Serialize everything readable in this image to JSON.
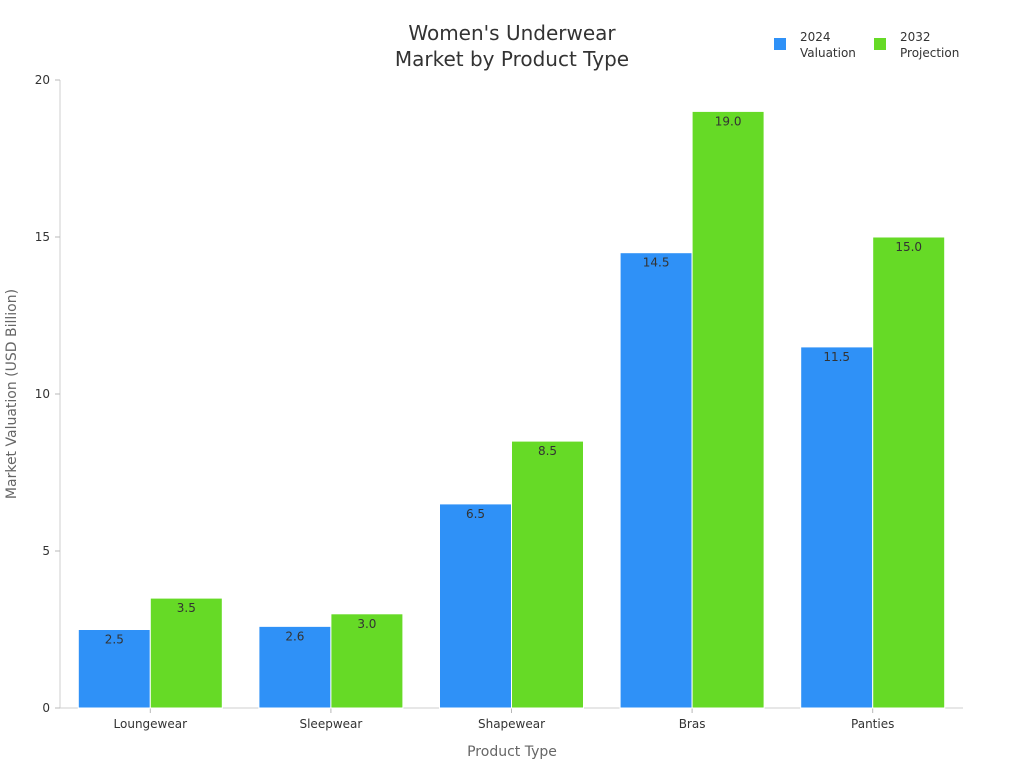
{
  "chart_data": {
    "type": "bar",
    "title_lines": [
      "Women's Underwear",
      "Market by Product Type"
    ],
    "xlabel": "Product Type",
    "ylabel": "Market Valuation (USD Billion)",
    "categories": [
      "Loungewear",
      "Sleepwear",
      "Shapewear",
      "Bras",
      "Panties"
    ],
    "series": [
      {
        "name_lines": [
          "2024",
          "Valuation"
        ],
        "color": "#2f91f7",
        "values": [
          2.5,
          2.6,
          6.5,
          14.5,
          11.5
        ],
        "labels": [
          "2.5",
          "2.6",
          "6.5",
          "14.5",
          "11.5"
        ]
      },
      {
        "name_lines": [
          "2032",
          "Projection"
        ],
        "color": "#66da26",
        "values": [
          3.5,
          3.0,
          8.5,
          19.0,
          15.0
        ],
        "labels": [
          "3.5",
          "3.0",
          "8.5",
          "19.0",
          "15.0"
        ]
      }
    ],
    "ylim": [
      0,
      20
    ],
    "yticks": [
      0,
      5,
      10,
      15,
      20
    ],
    "legend_position": "top-right",
    "grid": false
  }
}
